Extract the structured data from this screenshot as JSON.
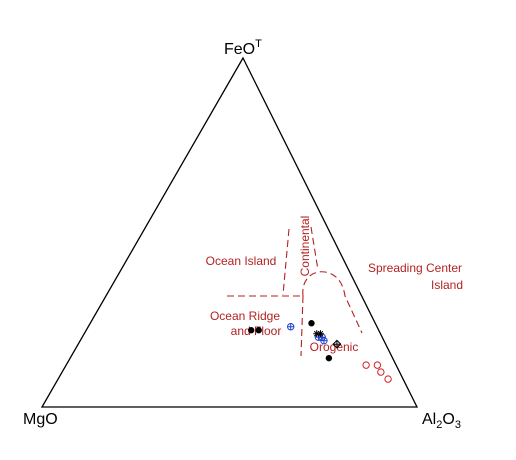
{
  "chart_data": {
    "type": "scatter",
    "subtype": "ternary",
    "title": "",
    "vertices": {
      "top": {
        "base": "FeO",
        "sup": "T",
        "sub": ""
      },
      "left": {
        "base": "MgO",
        "sup": "",
        "sub": ""
      },
      "right": {
        "base": "Al",
        "sub": "2",
        "mid": "O",
        "sub2": "3"
      }
    },
    "field_labels": [
      {
        "id": "ocean-island",
        "lines": [
          "Ocean Island"
        ]
      },
      {
        "id": "continental",
        "lines": [
          "Continental"
        ]
      },
      {
        "id": "spreading-center-island",
        "lines": [
          "Spreading Center",
          "Island"
        ]
      },
      {
        "id": "ocean-ridge-and-floor",
        "lines": [
          "Ocean Ridge",
          "and Floor"
        ]
      },
      {
        "id": "orogenic",
        "lines": [
          "Orogenic"
        ]
      }
    ],
    "colors": {
      "frame": "#000000",
      "boundary": "#b22222",
      "label": "#b22222",
      "series_black": "#000000",
      "series_blue": "#1f3fd0",
      "series_red": "#d62020"
    },
    "series": [
      {
        "marker": "filled-circle",
        "color": "#000000",
        "points": [
          {
            "MgO": 0.34,
            "FeO": 0.22,
            "Al2O3": 0.44
          },
          {
            "MgO": 0.32,
            "FeO": 0.22,
            "Al2O3": 0.46
          },
          {
            "MgO": 0.17,
            "FeO": 0.24,
            "Al2O3": 0.59
          },
          {
            "MgO": 0.17,
            "FeO": 0.14,
            "Al2O3": 0.69
          }
        ]
      },
      {
        "marker": "circle-plus",
        "color": "#1f3fd0",
        "points": [
          {
            "MgO": 0.23,
            "FeO": 0.23,
            "Al2O3": 0.54
          },
          {
            "MgO": 0.17,
            "FeO": 0.2,
            "Al2O3": 0.63
          },
          {
            "MgO": 0.16,
            "FeO": 0.2,
            "Al2O3": 0.64
          },
          {
            "MgO": 0.16,
            "FeO": 0.19,
            "Al2O3": 0.65
          }
        ]
      },
      {
        "marker": "asterisk",
        "color": "#000000",
        "points": [
          {
            "MgO": 0.17,
            "FeO": 0.21,
            "Al2O3": 0.62
          },
          {
            "MgO": 0.16,
            "FeO": 0.21,
            "Al2O3": 0.63
          }
        ]
      },
      {
        "marker": "diamond-plus",
        "color": "#000000",
        "points": [
          {
            "MgO": 0.13,
            "FeO": 0.18,
            "Al2O3": 0.69
          }
        ]
      },
      {
        "marker": "open-circle",
        "color": "#d62020",
        "points": [
          {
            "MgO": 0.08,
            "FeO": 0.12,
            "Al2O3": 0.8
          },
          {
            "MgO": 0.05,
            "FeO": 0.12,
            "Al2O3": 0.83
          },
          {
            "MgO": 0.05,
            "FeO": 0.1,
            "Al2O3": 0.85
          },
          {
            "MgO": 0.04,
            "FeO": 0.08,
            "Al2O3": 0.88
          }
        ]
      }
    ]
  }
}
